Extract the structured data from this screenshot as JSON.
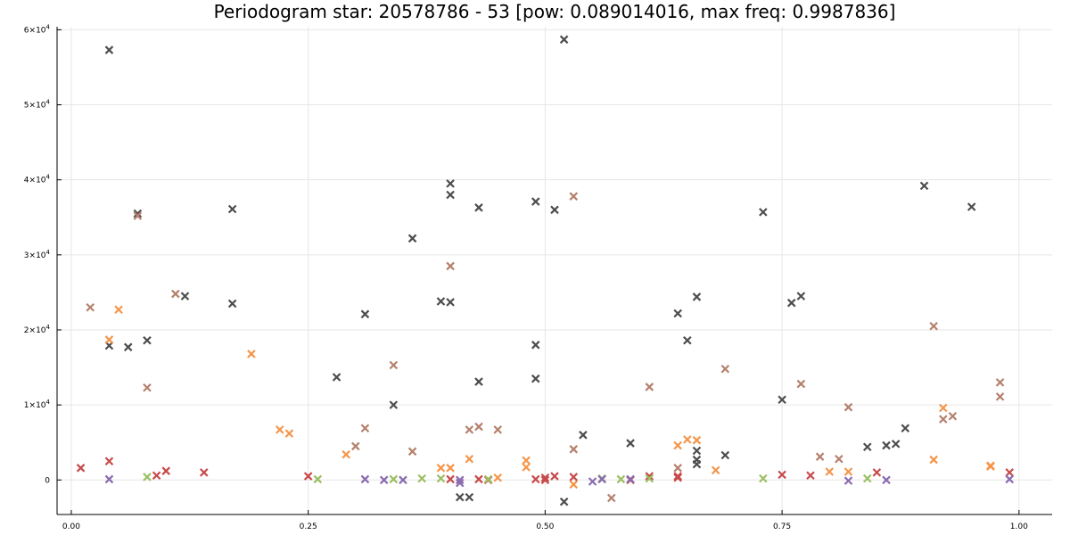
{
  "chart_data": {
    "type": "scatter",
    "title": "Periodogram star: 20578786 - 53 [pow: 0.089014016, max freq: 0.9987836]",
    "xlabel": "",
    "ylabel": "",
    "xlim": [
      -0.015,
      1.035
    ],
    "ylim": [
      -4600,
      60400
    ],
    "x_ticks": [
      0.0,
      0.25,
      0.5,
      0.75,
      1.0
    ],
    "x_tick_labels": [
      "0.00",
      "0.25",
      "0.50",
      "0.75",
      "1.00"
    ],
    "y_ticks": [
      0,
      10000,
      20000,
      30000,
      40000,
      50000,
      60000
    ],
    "y_tick_labels": [
      {
        "base": "0",
        "exp": ""
      },
      {
        "base": "1×10",
        "exp": "4"
      },
      {
        "base": "2×10",
        "exp": "4"
      },
      {
        "base": "3×10",
        "exp": "4"
      },
      {
        "base": "4×10",
        "exp": "4"
      },
      {
        "base": "5×10",
        "exp": "4"
      },
      {
        "base": "6×10",
        "exp": "4"
      }
    ],
    "grid": true,
    "marker": "x",
    "series": [
      {
        "color": "#4d4d4d",
        "points": [
          [
            0.04,
            57300
          ],
          [
            0.52,
            58700
          ],
          [
            0.07,
            35500
          ],
          [
            0.17,
            36100
          ],
          [
            0.4,
            39500
          ],
          [
            0.4,
            38000
          ],
          [
            0.43,
            36300
          ],
          [
            0.49,
            37100
          ],
          [
            0.51,
            36000
          ],
          [
            0.73,
            35700
          ],
          [
            0.9,
            39200
          ],
          [
            0.95,
            36400
          ],
          [
            0.12,
            24500
          ],
          [
            0.17,
            23500
          ],
          [
            0.36,
            32200
          ],
          [
            0.39,
            23800
          ],
          [
            0.4,
            23700
          ],
          [
            0.31,
            22100
          ],
          [
            0.64,
            22200
          ],
          [
            0.66,
            24400
          ],
          [
            0.76,
            23600
          ],
          [
            0.77,
            24500
          ],
          [
            0.04,
            17900
          ],
          [
            0.06,
            17700
          ],
          [
            0.08,
            18600
          ],
          [
            0.49,
            18000
          ],
          [
            0.65,
            18600
          ],
          [
            0.28,
            13700
          ],
          [
            0.43,
            13100
          ],
          [
            0.49,
            13500
          ],
          [
            0.34,
            10000
          ],
          [
            0.75,
            10700
          ],
          [
            0.54,
            6000
          ],
          [
            0.59,
            4900
          ],
          [
            0.66,
            3900
          ],
          [
            0.66,
            2700
          ],
          [
            0.66,
            2100
          ],
          [
            0.69,
            3300
          ],
          [
            0.84,
            4400
          ],
          [
            0.86,
            4600
          ],
          [
            0.87,
            4800
          ],
          [
            0.88,
            6900
          ],
          [
            0.41,
            -2300
          ],
          [
            0.42,
            -2300
          ],
          [
            0.52,
            -2900
          ]
        ]
      },
      {
        "color": "#b5806d",
        "points": [
          [
            0.07,
            35200
          ],
          [
            0.53,
            37800
          ],
          [
            0.4,
            28500
          ],
          [
            0.02,
            23000
          ],
          [
            0.11,
            24800
          ],
          [
            0.91,
            20500
          ],
          [
            0.08,
            12300
          ],
          [
            0.34,
            15300
          ],
          [
            0.61,
            12400
          ],
          [
            0.69,
            14800
          ],
          [
            0.77,
            12800
          ],
          [
            0.82,
            9700
          ],
          [
            0.93,
            8500
          ],
          [
            0.98,
            13000
          ],
          [
            0.98,
            11100
          ],
          [
            0.31,
            6900
          ],
          [
            0.3,
            4500
          ],
          [
            0.36,
            3800
          ],
          [
            0.42,
            6700
          ],
          [
            0.43,
            7100
          ],
          [
            0.45,
            6700
          ],
          [
            0.53,
            4100
          ],
          [
            0.57,
            -2400
          ],
          [
            0.79,
            3100
          ],
          [
            0.81,
            2800
          ],
          [
            0.92,
            8100
          ],
          [
            0.64,
            1600
          ]
        ]
      },
      {
        "color": "#f5954a",
        "points": [
          [
            0.05,
            22700
          ],
          [
            0.04,
            18700
          ],
          [
            0.19,
            16800
          ],
          [
            0.22,
            6700
          ],
          [
            0.23,
            6200
          ],
          [
            0.29,
            3400
          ],
          [
            0.39,
            1600
          ],
          [
            0.4,
            1600
          ],
          [
            0.42,
            2800
          ],
          [
            0.48,
            2600
          ],
          [
            0.48,
            1700
          ],
          [
            0.64,
            4600
          ],
          [
            0.65,
            5400
          ],
          [
            0.66,
            5300
          ],
          [
            0.68,
            1300
          ],
          [
            0.8,
            1100
          ],
          [
            0.82,
            1100
          ],
          [
            0.91,
            2700
          ],
          [
            0.92,
            9600
          ],
          [
            0.97,
            1800
          ],
          [
            0.97,
            1900
          ],
          [
            0.45,
            300
          ],
          [
            0.53,
            -600
          ]
        ]
      },
      {
        "color": "#c84a4a",
        "points": [
          [
            0.01,
            1600
          ],
          [
            0.04,
            2500
          ],
          [
            0.09,
            600
          ],
          [
            0.1,
            1200
          ],
          [
            0.14,
            1000
          ],
          [
            0.25,
            500
          ],
          [
            0.4,
            100
          ],
          [
            0.43,
            100
          ],
          [
            0.44,
            0
          ],
          [
            0.49,
            100
          ],
          [
            0.5,
            300
          ],
          [
            0.51,
            500
          ],
          [
            0.53,
            400
          ],
          [
            0.61,
            500
          ],
          [
            0.64,
            300
          ],
          [
            0.64,
            500
          ],
          [
            0.75,
            700
          ],
          [
            0.78,
            600
          ],
          [
            0.85,
            1000
          ],
          [
            0.99,
            1000
          ],
          [
            0.59,
            0
          ],
          [
            0.5,
            0
          ]
        ]
      },
      {
        "color": "#9bbf63",
        "points": [
          [
            0.08,
            400
          ],
          [
            0.26,
            100
          ],
          [
            0.34,
            100
          ],
          [
            0.37,
            200
          ],
          [
            0.39,
            200
          ],
          [
            0.44,
            100
          ],
          [
            0.56,
            200
          ],
          [
            0.58,
            100
          ],
          [
            0.61,
            200
          ],
          [
            0.73,
            200
          ],
          [
            0.84,
            200
          ]
        ]
      },
      {
        "color": "#8a6bb0",
        "points": [
          [
            0.04,
            100
          ],
          [
            0.31,
            100
          ],
          [
            0.33,
            0
          ],
          [
            0.35,
            0
          ],
          [
            0.41,
            -400
          ],
          [
            0.41,
            0
          ],
          [
            0.55,
            -200
          ],
          [
            0.56,
            100
          ],
          [
            0.59,
            100
          ],
          [
            0.82,
            -100
          ],
          [
            0.86,
            0
          ],
          [
            0.99,
            100
          ]
        ]
      }
    ]
  }
}
